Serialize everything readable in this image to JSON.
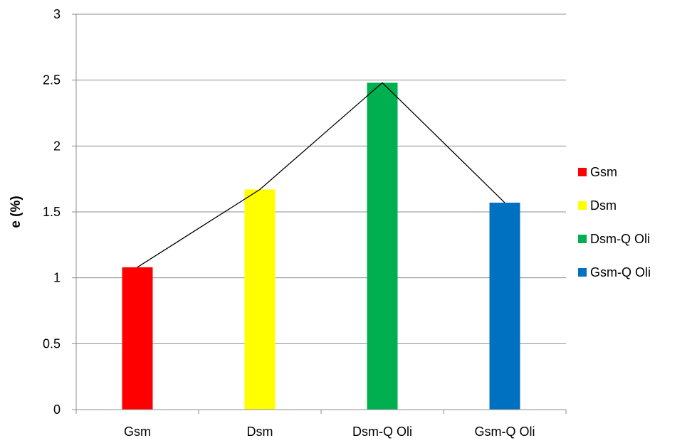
{
  "chart_data": {
    "type": "bar",
    "categories": [
      "Gsm",
      "Dsm",
      "Dsm-Q Oli",
      "Gsm-Q Oli"
    ],
    "values": [
      1.08,
      1.67,
      2.48,
      1.57
    ],
    "colors": [
      "#ff0000",
      "#ffff00",
      "#00b050",
      "#0070c0"
    ],
    "ylabel": "e (%)",
    "xlabel": "",
    "ylim": [
      0,
      3
    ],
    "yticks": [
      "0",
      "0.5",
      "1",
      "1.5",
      "2",
      "2.5",
      "3"
    ],
    "grid": true,
    "connecting_line": true,
    "legend": {
      "placement": "right",
      "entries": [
        "Gsm",
        "Dsm",
        "Dsm-Q Oli",
        "Gsm-Q Oli"
      ]
    }
  }
}
